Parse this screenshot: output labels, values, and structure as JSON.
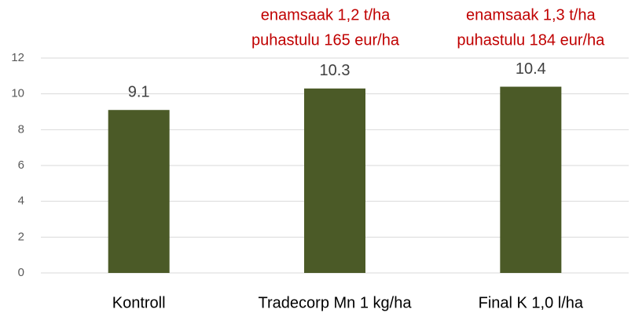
{
  "chart_data": {
    "type": "bar",
    "categories": [
      "Kontroll",
      "Tradecorp Mn 1 kg/ha",
      "Final K 1,0 l/ha"
    ],
    "values": [
      9.1,
      10.3,
      10.4
    ],
    "color": "#4b5a27",
    "annotations": [
      null,
      [
        "enamsaak 1,2 t/ha",
        "puhastulu 165 eur/ha"
      ],
      [
        "enamsaak 1,3 t/ha",
        "puhastulu 184 eur/ha"
      ]
    ],
    "annotation_color": "#c00000",
    "ylim": [
      0,
      12
    ],
    "yticks": [
      0,
      2,
      4,
      6,
      8,
      10,
      12
    ],
    "grid": true
  }
}
